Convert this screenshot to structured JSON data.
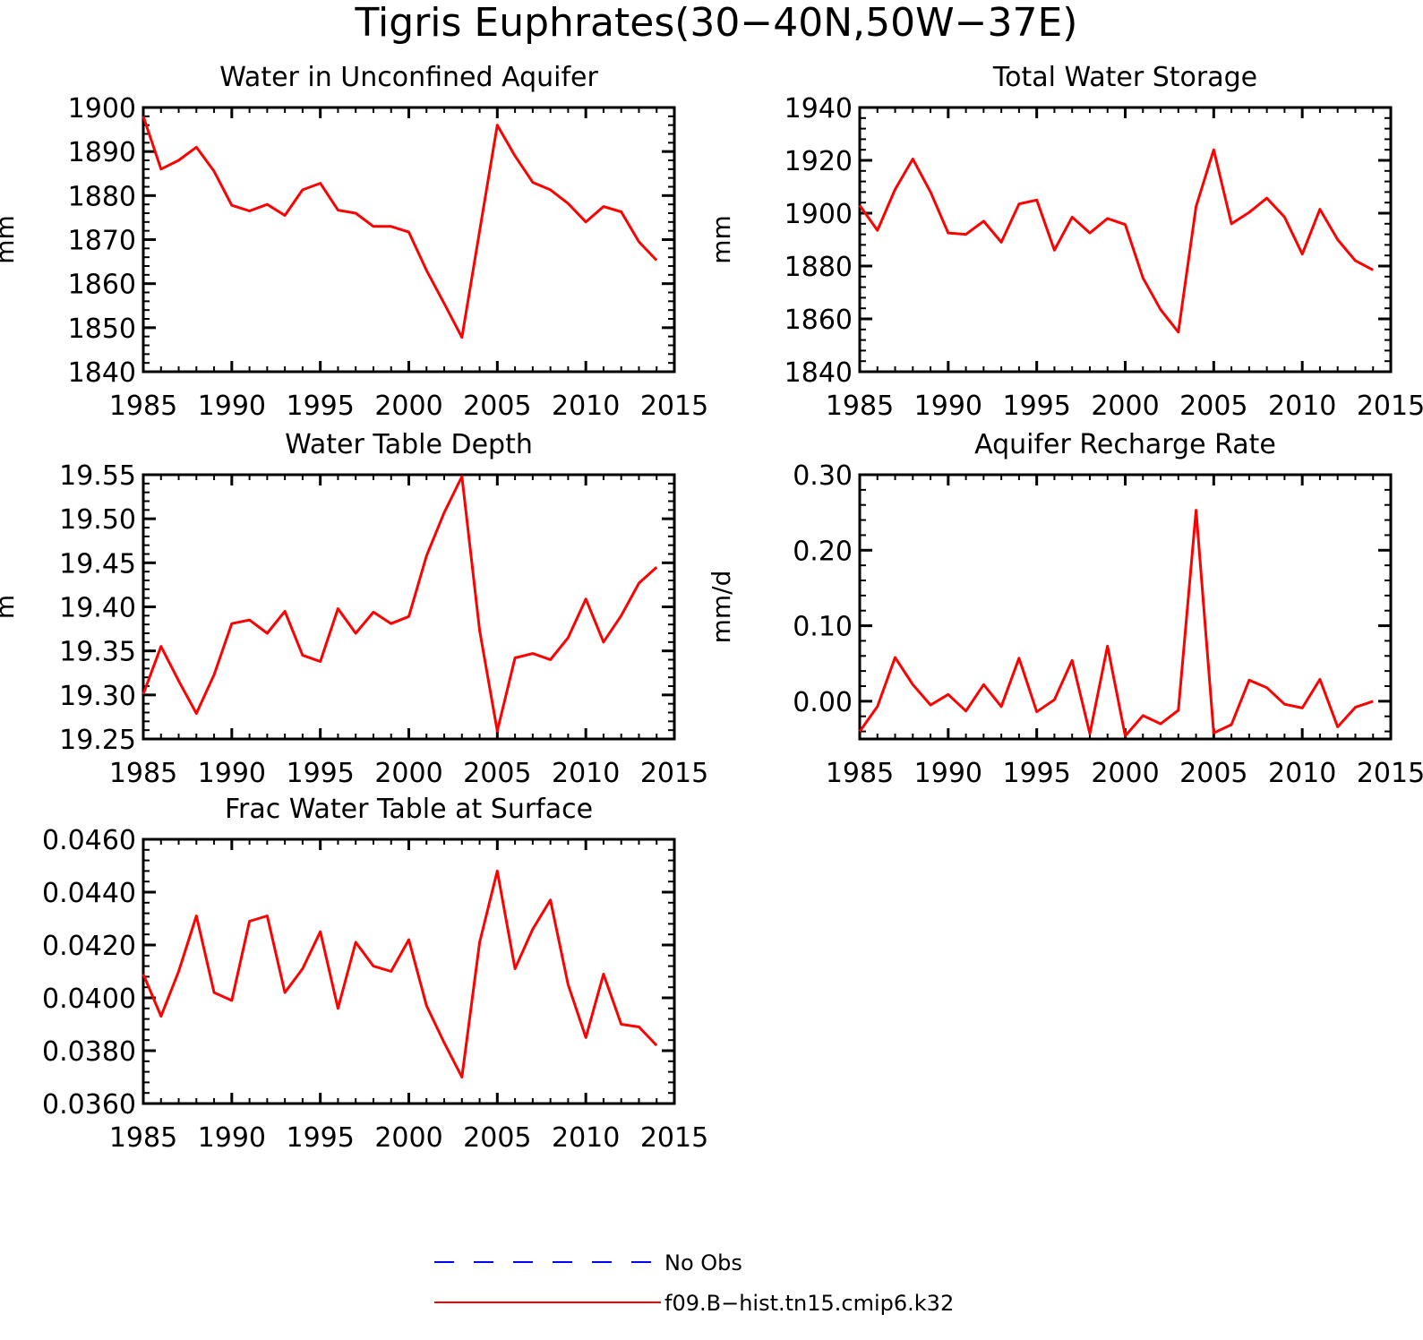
{
  "title": "Tigris Euphrates(30−40N,50W−37E)",
  "legend": [
    {
      "label": "No Obs",
      "color": "#0000ff",
      "dash": true
    },
    {
      "label": "f09.B−hist.tn15.cmip6.k32",
      "color": "#ff0000",
      "dash": false
    }
  ],
  "chart_data": [
    {
      "type": "line",
      "title": "Water in Unconfined Aquifer",
      "ylabel": "mm",
      "xlim": [
        1985,
        2015
      ],
      "ylim": [
        1840,
        1900
      ],
      "xticks": [
        "1985",
        "1990",
        "1995",
        "2000",
        "2005",
        "2010",
        "2015"
      ],
      "yticks": [
        "1840",
        "1850",
        "1860",
        "1870",
        "1880",
        "1890",
        "1900"
      ],
      "x": [
        1985,
        1986,
        1987,
        1988,
        1989,
        1990,
        1991,
        1992,
        1993,
        1994,
        1995,
        1996,
        1997,
        1998,
        1999,
        2000,
        2001,
        2002,
        2003,
        2004,
        2005,
        2006,
        2007,
        2008,
        2009,
        2010,
        2011,
        2012,
        2013,
        2014
      ],
      "series": [
        {
          "color": "#ff0000",
          "values": [
            1898,
            1886,
            1888,
            1891,
            1885.5,
            1877.8,
            1876.5,
            1878,
            1875.5,
            1881.3,
            1882.8,
            1876.7,
            1876,
            1873,
            1873,
            1871.7,
            1863,
            1855.5,
            1847.8,
            1872,
            1896,
            1889,
            1883,
            1881.3,
            1878.2,
            1874,
            1877.5,
            1876.3,
            1869.5,
            1865.3
          ]
        }
      ]
    },
    {
      "type": "line",
      "title": "Total Water Storage",
      "ylabel": "mm",
      "xlim": [
        1985,
        2015
      ],
      "ylim": [
        1840,
        1940
      ],
      "xticks": [
        "1985",
        "1990",
        "1995",
        "2000",
        "2005",
        "2010",
        "2015"
      ],
      "yticks": [
        "1840",
        "1860",
        "1880",
        "1900",
        "1920",
        "1940"
      ],
      "x": [
        1985,
        1986,
        1987,
        1988,
        1989,
        1990,
        1991,
        1992,
        1993,
        1994,
        1995,
        1996,
        1997,
        1998,
        1999,
        2000,
        2001,
        2002,
        2003,
        2004,
        2005,
        2006,
        2007,
        2008,
        2009,
        2010,
        2011,
        2012,
        2013,
        2014
      ],
      "series": [
        {
          "color": "#ff0000",
          "values": [
            1903,
            1893.5,
            1909,
            1920.5,
            1908,
            1892.5,
            1892,
            1897,
            1889,
            1903.5,
            1905,
            1886,
            1898.5,
            1892.5,
            1898,
            1895.7,
            1875.5,
            1863.5,
            1855,
            1902.5,
            1924,
            1896,
            1900.3,
            1905.7,
            1898.5,
            1884.5,
            1901.5,
            1890,
            1882,
            1878.5
          ]
        }
      ]
    },
    {
      "type": "line",
      "title": "Water Table Depth",
      "ylabel": "m",
      "xlim": [
        1985,
        2015
      ],
      "ylim": [
        19.25,
        19.55
      ],
      "xticks": [
        "1985",
        "1990",
        "1995",
        "2000",
        "2005",
        "2010",
        "2015"
      ],
      "yticks": [
        "19.25",
        "19.30",
        "19.35",
        "19.40",
        "19.45",
        "19.50",
        "19.55"
      ],
      "x": [
        1985,
        1986,
        1987,
        1988,
        1989,
        1990,
        1991,
        1992,
        1993,
        1994,
        1995,
        1996,
        1997,
        1998,
        1999,
        2000,
        2001,
        2002,
        2003,
        2004,
        2005,
        2006,
        2007,
        2008,
        2009,
        2010,
        2011,
        2012,
        2013,
        2014
      ],
      "series": [
        {
          "color": "#ff0000",
          "values": [
            19.301,
            19.355,
            19.316,
            19.279,
            19.323,
            19.381,
            19.385,
            19.37,
            19.395,
            19.345,
            19.338,
            19.398,
            19.37,
            19.394,
            19.381,
            19.389,
            19.458,
            19.507,
            19.548,
            19.373,
            19.259,
            19.342,
            19.347,
            19.34,
            19.365,
            19.409,
            19.36,
            19.39,
            19.427,
            19.445
          ]
        }
      ]
    },
    {
      "type": "line",
      "title": "Aquifer Recharge Rate",
      "ylabel": "mm/d",
      "xlim": [
        1985,
        2015
      ],
      "ylim": [
        -0.05,
        0.3
      ],
      "xticks": [
        "1985",
        "1990",
        "1995",
        "2000",
        "2005",
        "2010",
        "2015"
      ],
      "yticks": [
        "0.00",
        "0.10",
        "0.20",
        "0.30"
      ],
      "x": [
        1985,
        1986,
        1987,
        1988,
        1989,
        1990,
        1991,
        1992,
        1993,
        1994,
        1995,
        1996,
        1997,
        1998,
        1999,
        2000,
        2001,
        2002,
        2003,
        2004,
        2005,
        2006,
        2007,
        2008,
        2009,
        2010,
        2011,
        2012,
        2013,
        2014
      ],
      "series": [
        {
          "color": "#ff0000",
          "values": [
            -0.04,
            -0.007,
            0.058,
            0.022,
            -0.005,
            0.009,
            -0.013,
            0.022,
            -0.007,
            0.057,
            -0.014,
            0.002,
            0.054,
            -0.043,
            0.073,
            -0.046,
            -0.019,
            -0.03,
            -0.012,
            0.253,
            -0.042,
            -0.031,
            0.028,
            0.018,
            -0.004,
            -0.009,
            0.029,
            -0.034,
            -0.008,
            0
          ]
        }
      ]
    },
    {
      "type": "line",
      "title": "Frac Water Table at Surface",
      "ylabel": "",
      "xlim": [
        1985,
        2015
      ],
      "ylim": [
        0.036,
        0.046
      ],
      "xticks": [
        "1985",
        "1990",
        "1995",
        "2000",
        "2005",
        "2010",
        "2015"
      ],
      "yticks": [
        "0.0360",
        "0.0380",
        "0.0400",
        "0.0420",
        "0.0440",
        "0.0460"
      ],
      "x": [
        1985,
        1986,
        1987,
        1988,
        1989,
        1990,
        1991,
        1992,
        1993,
        1994,
        1995,
        1996,
        1997,
        1998,
        1999,
        2000,
        2001,
        2002,
        2003,
        2004,
        2005,
        2006,
        2007,
        2008,
        2009,
        2010,
        2011,
        2012,
        2013,
        2014
      ],
      "series": [
        {
          "color": "#ff0000",
          "values": [
            0.0409,
            0.0393,
            0.041,
            0.0431,
            0.0402,
            0.0399,
            0.0429,
            0.0431,
            0.0402,
            0.0411,
            0.0425,
            0.0396,
            0.0421,
            0.0412,
            0.041,
            0.0422,
            0.0397,
            0.0383,
            0.037,
            0.0421,
            0.0448,
            0.0411,
            0.0426,
            0.0437,
            0.0405,
            0.0385,
            0.0409,
            0.039,
            0.0389,
            0.0382
          ]
        }
      ]
    }
  ]
}
